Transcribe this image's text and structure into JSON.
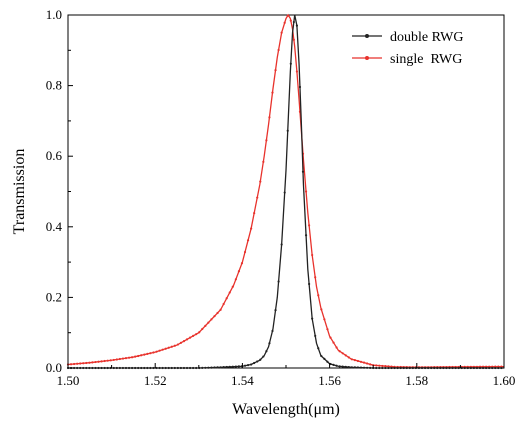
{
  "chart_data": {
    "type": "line",
    "xlabel": "Wavelength(μm)",
    "ylabel": "Transmission",
    "xlim": [
      1.5,
      1.6
    ],
    "ylim": [
      0.0,
      1.0
    ],
    "xticks": [
      "1.50",
      "1.52",
      "1.54",
      "1.56",
      "1.58",
      "1.60"
    ],
    "yticks": [
      "0.0",
      "0.2",
      "0.4",
      "0.6",
      "0.8",
      "1.0"
    ],
    "grid": false,
    "legend_position": "top-right",
    "series": [
      {
        "name": "double RWG",
        "color": "#222222",
        "marker": "dot",
        "x": [
          1.5,
          1.51,
          1.52,
          1.53,
          1.535,
          1.54,
          1.542,
          1.544,
          1.545,
          1.546,
          1.547,
          1.548,
          1.549,
          1.55,
          1.5505,
          1.551,
          1.5515,
          1.552,
          1.5525,
          1.553,
          1.5535,
          1.554,
          1.555,
          1.556,
          1.557,
          1.558,
          1.56,
          1.562,
          1.565,
          1.57,
          1.58,
          1.59,
          1.6
        ],
        "y": [
          0.0,
          0.0,
          0.0,
          0.0,
          0.002,
          0.005,
          0.01,
          0.022,
          0.035,
          0.06,
          0.11,
          0.2,
          0.35,
          0.56,
          0.7,
          0.84,
          0.95,
          1.0,
          0.97,
          0.86,
          0.7,
          0.52,
          0.28,
          0.14,
          0.07,
          0.035,
          0.012,
          0.005,
          0.002,
          0.0,
          0.0,
          0.0,
          0.0
        ]
      },
      {
        "name": "single  RWG",
        "color": "#e8322c",
        "marker": "dot",
        "x": [
          1.5,
          1.505,
          1.51,
          1.515,
          1.52,
          1.525,
          1.53,
          1.535,
          1.538,
          1.54,
          1.542,
          1.544,
          1.545,
          1.546,
          1.547,
          1.548,
          1.549,
          1.55,
          1.5505,
          1.551,
          1.5515,
          1.552,
          1.5525,
          1.553,
          1.554,
          1.555,
          1.556,
          1.557,
          1.558,
          1.56,
          1.562,
          1.565,
          1.57,
          1.575,
          1.58,
          1.59,
          1.6
        ],
        "y": [
          0.01,
          0.015,
          0.022,
          0.031,
          0.045,
          0.065,
          0.1,
          0.165,
          0.235,
          0.3,
          0.395,
          0.52,
          0.6,
          0.69,
          0.79,
          0.88,
          0.95,
          0.99,
          1.0,
          0.99,
          0.96,
          0.91,
          0.84,
          0.76,
          0.59,
          0.44,
          0.32,
          0.23,
          0.17,
          0.09,
          0.05,
          0.025,
          0.008,
          0.003,
          0.002,
          0.003,
          0.004
        ]
      }
    ]
  }
}
